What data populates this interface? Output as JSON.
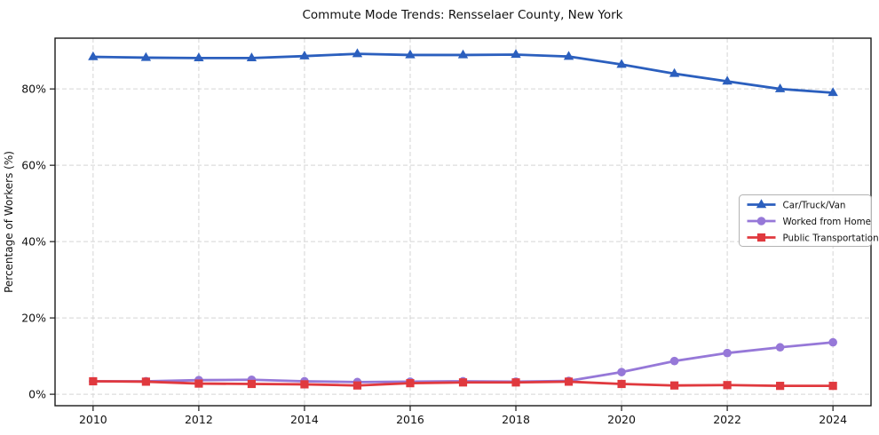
{
  "figure": {
    "title": "Commute Mode Trends: Rensselaer County, New York"
  },
  "chart_data": {
    "type": "line",
    "title": "Commute Mode Trends: Rensselaer County, New York",
    "xlabel": "",
    "ylabel": "Percentage of Workers (%)",
    "x": [
      2010,
      2011,
      2012,
      2013,
      2014,
      2015,
      2016,
      2017,
      2018,
      2019,
      2020,
      2021,
      2022,
      2023,
      2024
    ],
    "series": [
      {
        "name": "Car/Truck/Van",
        "color": "#2b5fbe",
        "marker": "triangle",
        "values": [
          88.4,
          88.2,
          88.1,
          88.1,
          88.6,
          89.2,
          88.9,
          88.9,
          89.0,
          88.5,
          86.4,
          84.0,
          82.0,
          80.0,
          79.0
        ]
      },
      {
        "name": "Worked from Home",
        "color": "#9678d8",
        "marker": "circle",
        "values": [
          3.4,
          3.4,
          3.7,
          3.8,
          3.4,
          3.2,
          3.3,
          3.4,
          3.3,
          3.5,
          5.8,
          8.7,
          10.8,
          12.3,
          13.6
        ]
      },
      {
        "name": "Public Transportation",
        "color": "#e0393e",
        "marker": "square",
        "values": [
          3.4,
          3.3,
          2.8,
          2.7,
          2.6,
          2.3,
          2.9,
          3.1,
          3.1,
          3.3,
          2.7,
          2.3,
          2.4,
          2.2,
          2.2
        ]
      }
    ],
    "x_ticks": [
      2010,
      2012,
      2014,
      2016,
      2018,
      2020,
      2022,
      2024
    ],
    "x_tick_labels": [
      "2010",
      "2012",
      "2014",
      "2016",
      "2018",
      "2020",
      "2022",
      "2024"
    ],
    "y_ticks": [
      0,
      20,
      40,
      60,
      80
    ],
    "y_tick_labels": [
      "0%",
      "20%",
      "40%",
      "60%",
      "80%"
    ],
    "xlim": [
      2009.28,
      2024.72
    ],
    "ylim": [
      -3,
      93.3
    ],
    "grid": true,
    "legend_position": "center-right"
  },
  "styles": {
    "background": "#ffffff",
    "grid_color": "#d5d5d5",
    "spine_color": "#1a1a1a",
    "text_color": "#111111",
    "legend_border": "#b3b3b3",
    "legend_fill": "#ffffff"
  }
}
